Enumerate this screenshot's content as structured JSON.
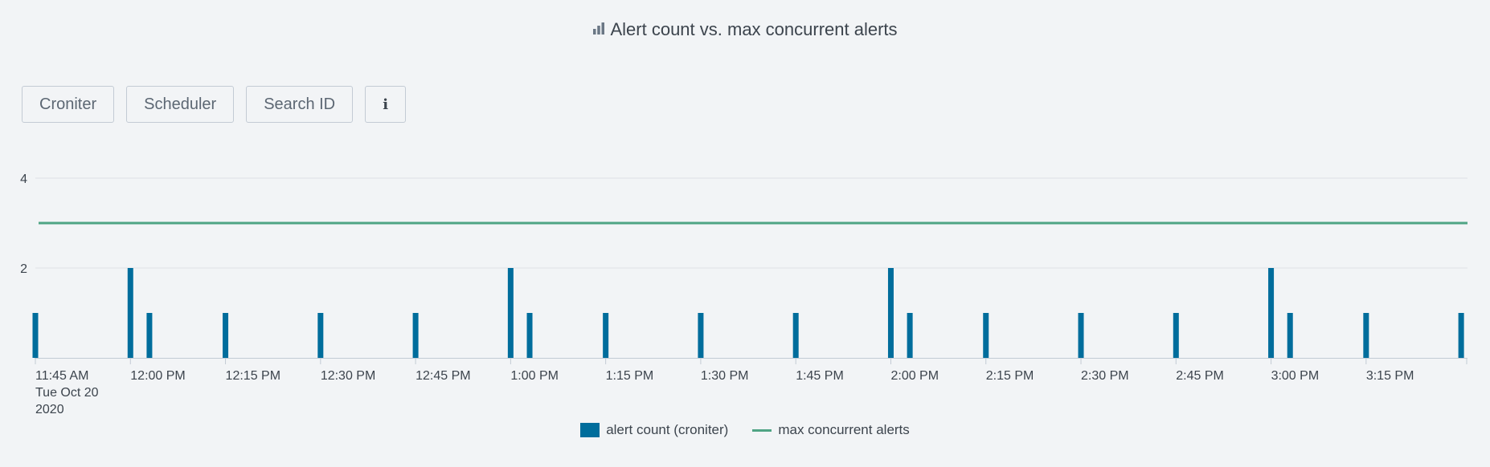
{
  "panel": {
    "title": "Alert count vs. max concurrent alerts",
    "title_icon": "bar-chart-icon"
  },
  "toolbar": {
    "buttons": [
      {
        "label": "Croniter"
      },
      {
        "label": "Scheduler"
      },
      {
        "label": "Search ID"
      },
      {
        "label": "i",
        "icon": "info-icon"
      }
    ]
  },
  "colors": {
    "bar": "#006d9c",
    "line": "#4fa484",
    "grid": "#dde1e5",
    "axis": "#c3cbd4",
    "text": "#3c444d",
    "background": "#f2f4f6"
  },
  "chart_data": {
    "type": "bar",
    "title": "Alert count vs. max concurrent alerts",
    "ylim": [
      0,
      4
    ],
    "y_ticks": [
      "2",
      "4"
    ],
    "x_range_minutes": [
      0,
      226
    ],
    "x_ticks": [
      {
        "minute": 0,
        "label": "11:45 AM",
        "sub": [
          "Tue Oct 20",
          "2020"
        ]
      },
      {
        "minute": 15,
        "label": "12:00 PM"
      },
      {
        "minute": 30,
        "label": "12:15 PM"
      },
      {
        "minute": 45,
        "label": "12:30 PM"
      },
      {
        "minute": 60,
        "label": "12:45 PM"
      },
      {
        "minute": 75,
        "label": "1:00 PM"
      },
      {
        "minute": 90,
        "label": "1:15 PM"
      },
      {
        "minute": 105,
        "label": "1:30 PM"
      },
      {
        "minute": 120,
        "label": "1:45 PM"
      },
      {
        "minute": 135,
        "label": "2:00 PM"
      },
      {
        "minute": 150,
        "label": "2:15 PM"
      },
      {
        "minute": 165,
        "label": "2:30 PM"
      },
      {
        "minute": 180,
        "label": "2:45 PM"
      },
      {
        "minute": 195,
        "label": "3:00 PM"
      },
      {
        "minute": 210,
        "label": "3:15 PM"
      }
    ],
    "series": [
      {
        "name": "alert count (croniter)",
        "type": "bar",
        "x": [
          0,
          15,
          18,
          30,
          45,
          60,
          75,
          78,
          90,
          105,
          120,
          135,
          138,
          150,
          165,
          180,
          195,
          198,
          210,
          225
        ],
        "values": [
          1,
          2,
          1,
          1,
          1,
          1,
          2,
          1,
          1,
          1,
          1,
          2,
          1,
          1,
          1,
          1,
          2,
          1,
          1,
          1
        ]
      },
      {
        "name": "max concurrent alerts",
        "type": "line",
        "x": [
          0,
          226
        ],
        "values": [
          3,
          3
        ]
      }
    ],
    "legend": [
      {
        "label": "alert count (croniter)",
        "kind": "bar"
      },
      {
        "label": "max concurrent alerts",
        "kind": "line"
      }
    ],
    "legend_position": "bottom",
    "grid": true
  }
}
